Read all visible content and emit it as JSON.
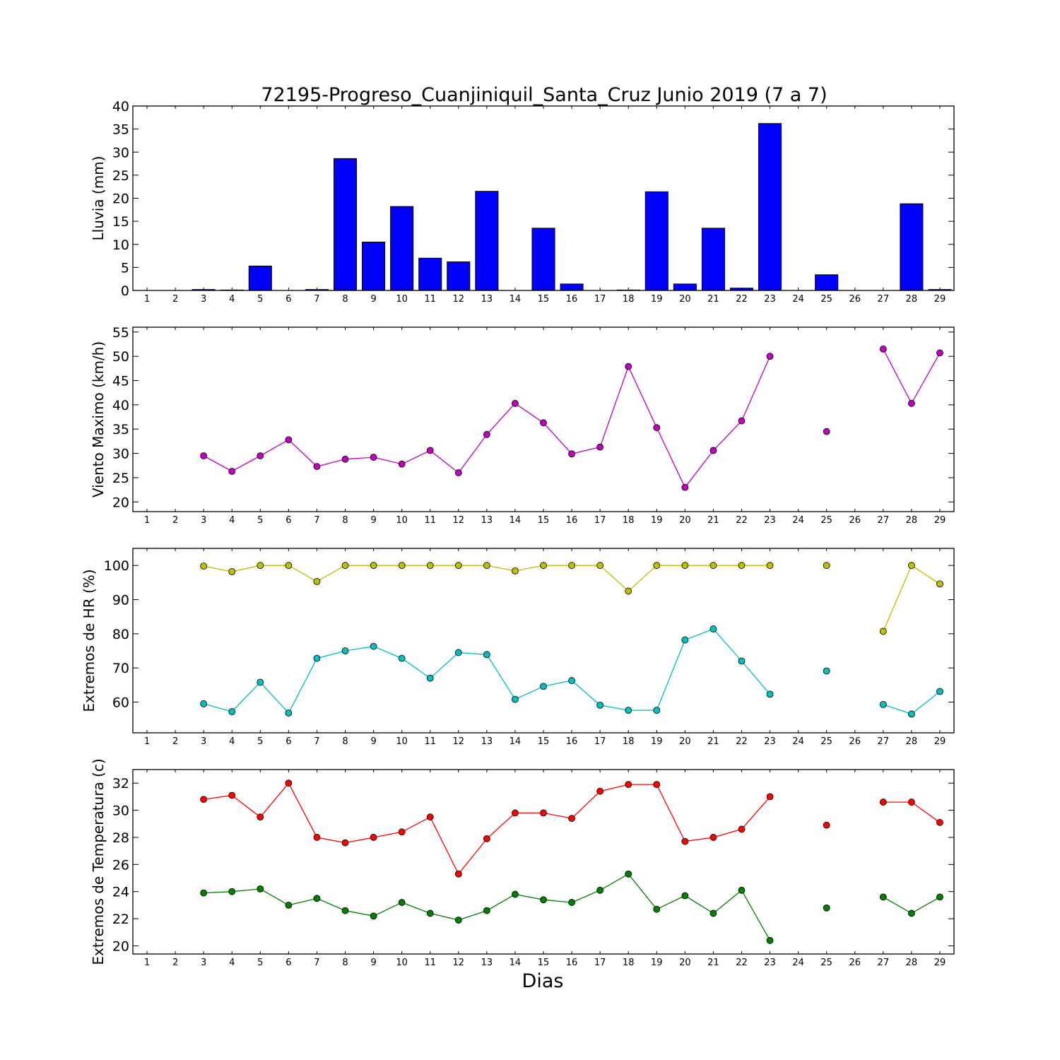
{
  "title": "72195-Progreso_Cuanjiniquil_Santa_Cruz Junio 2019  (7 a 7)",
  "xlabel": "Dias",
  "chart_data": [
    {
      "type": "bar",
      "ylabel": "Lluvia (mm)",
      "x": [
        1,
        2,
        3,
        4,
        5,
        6,
        7,
        8,
        9,
        10,
        11,
        12,
        13,
        14,
        15,
        16,
        17,
        18,
        19,
        20,
        21,
        22,
        23,
        24,
        25,
        26,
        27,
        28,
        29
      ],
      "ylim": [
        0,
        40
      ],
      "yticks": [
        0,
        5,
        10,
        15,
        20,
        25,
        30,
        35,
        40
      ],
      "grid": false,
      "series": [
        {
          "color": "#0000ff",
          "values": [
            0,
            0,
            0.2,
            0.1,
            5.3,
            0,
            0.2,
            28.6,
            10.5,
            18.2,
            7.0,
            6.2,
            21.5,
            0,
            13.5,
            1.4,
            0,
            0.1,
            21.4,
            1.4,
            13.5,
            0.5,
            36.2,
            0,
            3.4,
            0,
            0,
            18.8,
            0.2
          ]
        }
      ]
    },
    {
      "type": "line",
      "ylabel": "Viento Maximo (km/h)",
      "x": [
        1,
        2,
        3,
        4,
        5,
        6,
        7,
        8,
        9,
        10,
        11,
        12,
        13,
        14,
        15,
        16,
        17,
        18,
        19,
        20,
        21,
        22,
        23,
        24,
        25,
        26,
        27,
        28,
        29
      ],
      "ylim": [
        18,
        56
      ],
      "yticks": [
        20,
        25,
        30,
        35,
        40,
        45,
        50,
        55
      ],
      "grid": false,
      "series": [
        {
          "color": "#bf00bf",
          "values": [
            null,
            null,
            29.5,
            26.3,
            29.5,
            32.8,
            27.3,
            28.8,
            29.2,
            27.8,
            30.6,
            26.0,
            33.9,
            40.3,
            36.3,
            29.9,
            31.3,
            47.9,
            35.3,
            23.0,
            30.6,
            36.7,
            50.0,
            null,
            34.5,
            null,
            51.5,
            40.3,
            50.7
          ]
        }
      ]
    },
    {
      "type": "line",
      "ylabel": "Extremos de HR (%)",
      "x": [
        1,
        2,
        3,
        4,
        5,
        6,
        7,
        8,
        9,
        10,
        11,
        12,
        13,
        14,
        15,
        16,
        17,
        18,
        19,
        20,
        21,
        22,
        23,
        24,
        25,
        26,
        27,
        28,
        29
      ],
      "ylim": [
        51,
        105
      ],
      "yticks": [
        60,
        70,
        80,
        90,
        100
      ],
      "grid": false,
      "series": [
        {
          "color": "#bfbf00",
          "values": [
            null,
            null,
            99.8,
            98.2,
            100,
            100,
            95.3,
            100,
            100,
            100,
            100,
            100,
            100,
            98.4,
            100,
            100,
            100,
            92.5,
            100,
            100,
            100,
            100,
            100,
            null,
            100,
            null,
            80.7,
            100,
            94.6
          ]
        },
        {
          "color": "#00bfbf",
          "values": [
            null,
            null,
            59.5,
            57.2,
            65.8,
            56.8,
            72.8,
            75.0,
            76.3,
            72.8,
            67.0,
            74.5,
            73.9,
            60.8,
            64.6,
            66.3,
            59.1,
            57.6,
            57.6,
            78.2,
            81.4,
            72.0,
            62.3,
            null,
            69.1,
            null,
            59.3,
            56.5,
            63.1
          ]
        }
      ]
    },
    {
      "type": "line",
      "ylabel": "Extremos de Temperatura (c)",
      "x": [
        1,
        2,
        3,
        4,
        5,
        6,
        7,
        8,
        9,
        10,
        11,
        12,
        13,
        14,
        15,
        16,
        17,
        18,
        19,
        20,
        21,
        22,
        23,
        24,
        25,
        26,
        27,
        28,
        29
      ],
      "ylim": [
        19.4,
        33
      ],
      "yticks": [
        20,
        22,
        24,
        26,
        28,
        30,
        32
      ],
      "grid": false,
      "series": [
        {
          "color": "#ff0000",
          "values": [
            null,
            null,
            30.8,
            31.1,
            29.5,
            32.0,
            28.0,
            27.6,
            28.0,
            28.4,
            29.5,
            25.3,
            27.9,
            29.8,
            29.8,
            29.4,
            31.4,
            31.9,
            31.9,
            27.7,
            28.0,
            28.6,
            31.0,
            null,
            28.9,
            null,
            30.6,
            30.6,
            29.1
          ]
        },
        {
          "color": "#007f00",
          "values": [
            null,
            null,
            23.9,
            24.0,
            24.2,
            23.0,
            23.5,
            22.6,
            22.2,
            23.2,
            22.4,
            21.9,
            22.6,
            23.8,
            23.4,
            23.2,
            24.1,
            25.3,
            22.7,
            23.7,
            22.4,
            24.1,
            20.4,
            null,
            22.8,
            null,
            23.6,
            22.4,
            23.6
          ]
        }
      ]
    }
  ]
}
